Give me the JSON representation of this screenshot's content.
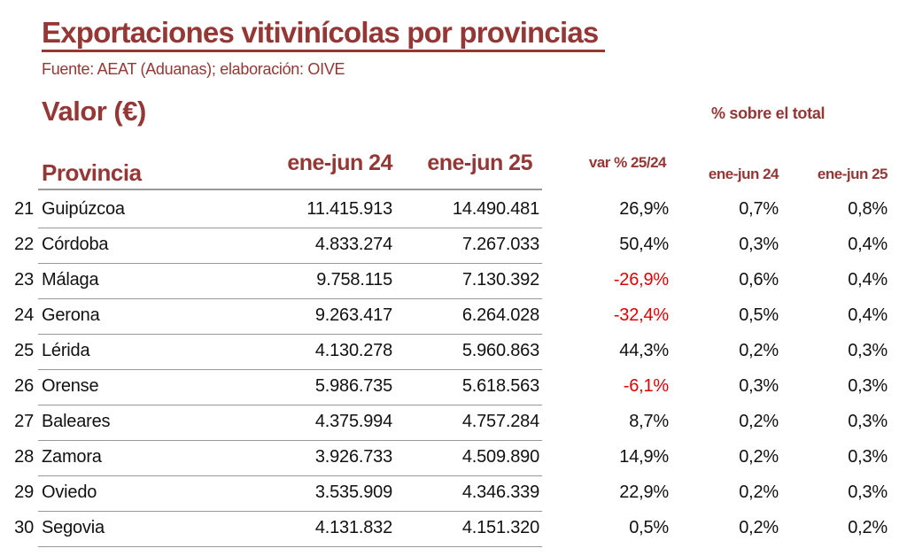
{
  "title": "Exportaciones vitivinícolas por provincias",
  "source": "Fuente: AEAT (Aduanas); elaboración: OIVE",
  "section": "Valor (€)",
  "pct_total_label": "% sobre el total",
  "headers": {
    "provincia": "Provincia",
    "v24": "ene-jun 24",
    "v25": "ene-jun 25",
    "var": "var % 25/24",
    "p24": "ene-jun 24",
    "p25": "ene-jun 25"
  },
  "colors": {
    "accent": "#953735",
    "negative": "#e00000"
  },
  "rows": [
    {
      "rank": "21",
      "name": "Guipúzcoa",
      "v24": "11.415.913",
      "v25": "14.490.481",
      "var": "26,9%",
      "p24": "0,7%",
      "p25": "0,8%"
    },
    {
      "rank": "22",
      "name": "Córdoba",
      "v24": "4.833.274",
      "v25": "7.267.033",
      "var": "50,4%",
      "p24": "0,3%",
      "p25": "0,4%"
    },
    {
      "rank": "23",
      "name": "Málaga",
      "v24": "9.758.115",
      "v25": "7.130.392",
      "var": "-26,9%",
      "p24": "0,6%",
      "p25": "0,4%"
    },
    {
      "rank": "24",
      "name": "Gerona",
      "v24": "9.263.417",
      "v25": "6.264.028",
      "var": "-32,4%",
      "p24": "0,5%",
      "p25": "0,4%"
    },
    {
      "rank": "25",
      "name": "Lérida",
      "v24": "4.130.278",
      "v25": "5.960.863",
      "var": "44,3%",
      "p24": "0,2%",
      "p25": "0,3%"
    },
    {
      "rank": "26",
      "name": "Orense",
      "v24": "5.986.735",
      "v25": "5.618.563",
      "var": "-6,1%",
      "p24": "0,3%",
      "p25": "0,3%"
    },
    {
      "rank": "27",
      "name": "Baleares",
      "v24": "4.375.994",
      "v25": "4.757.284",
      "var": "8,7%",
      "p24": "0,2%",
      "p25": "0,3%"
    },
    {
      "rank": "28",
      "name": "Zamora",
      "v24": "3.926.733",
      "v25": "4.509.890",
      "var": "14,9%",
      "p24": "0,2%",
      "p25": "0,3%"
    },
    {
      "rank": "29",
      "name": "Oviedo",
      "v24": "3.535.909",
      "v25": "4.346.339",
      "var": "22,9%",
      "p24": "0,2%",
      "p25": "0,3%"
    },
    {
      "rank": "30",
      "name": "Segovia",
      "v24": "4.131.832",
      "v25": "4.151.320",
      "var": "0,5%",
      "p24": "0,2%",
      "p25": "0,2%"
    }
  ]
}
